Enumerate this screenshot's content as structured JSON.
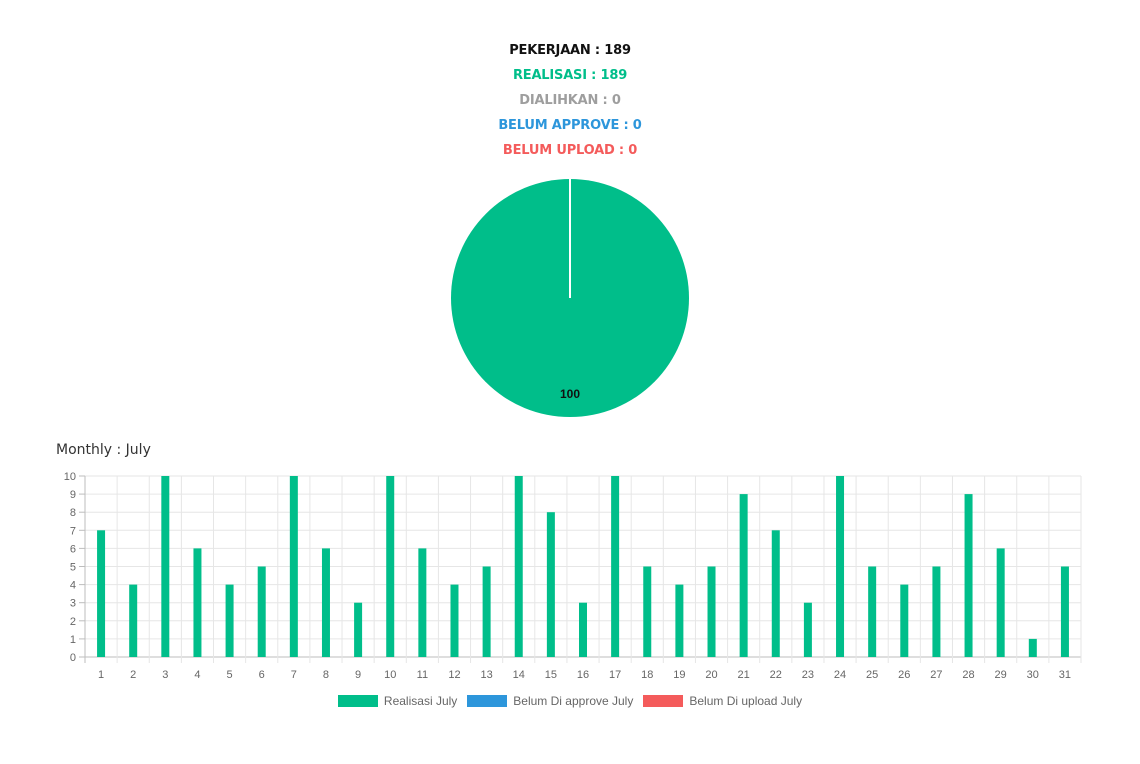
{
  "stats": {
    "pekerjaan": "PEKERJAAN : 189",
    "realisasi": "REALISASI : 189",
    "dialihkan": "DIALIHKAN : 0",
    "belum_approve": "BELUM APPROVE : 0",
    "belum_upload": "BELUM UPLOAD : 0"
  },
  "colors": {
    "black": "#111111",
    "green": "#00be8a",
    "gray": "#9e9e9e",
    "blue": "#2d96db",
    "red": "#f45b5b"
  },
  "monthly_title": "Monthly : July",
  "chart_data": [
    {
      "type": "pie",
      "slices": [
        {
          "label": "Realisasi",
          "value": 100,
          "color": "#00be8a"
        }
      ],
      "data_label": "100"
    },
    {
      "type": "bar",
      "categories": [
        "1",
        "2",
        "3",
        "4",
        "5",
        "6",
        "7",
        "8",
        "9",
        "10",
        "11",
        "12",
        "13",
        "14",
        "15",
        "16",
        "17",
        "18",
        "19",
        "20",
        "21",
        "22",
        "23",
        "24",
        "25",
        "26",
        "27",
        "28",
        "29",
        "30",
        "31"
      ],
      "series": [
        {
          "name": "Realisasi July",
          "color": "#00be8a",
          "values": [
            7,
            4,
            10,
            6,
            4,
            5,
            10,
            6,
            3,
            10,
            6,
            4,
            5,
            10,
            8,
            3,
            10,
            5,
            4,
            5,
            9,
            7,
            3,
            10,
            5,
            4,
            5,
            9,
            6,
            1,
            5
          ]
        },
        {
          "name": "Belum Di approve July",
          "color": "#2d96db",
          "values": [
            0,
            0,
            0,
            0,
            0,
            0,
            0,
            0,
            0,
            0,
            0,
            0,
            0,
            0,
            0,
            0,
            0,
            0,
            0,
            0,
            0,
            0,
            0,
            0,
            0,
            0,
            0,
            0,
            0,
            0,
            0
          ]
        },
        {
          "name": "Belum Di upload July",
          "color": "#f45b5b",
          "values": [
            0,
            0,
            0,
            0,
            0,
            0,
            0,
            0,
            0,
            0,
            0,
            0,
            0,
            0,
            0,
            0,
            0,
            0,
            0,
            0,
            0,
            0,
            0,
            0,
            0,
            0,
            0,
            0,
            0,
            0,
            0
          ]
        }
      ],
      "ylim": [
        0,
        10
      ],
      "yticks": [
        0,
        1,
        2,
        3,
        4,
        5,
        6,
        7,
        8,
        9,
        10
      ],
      "grid": true,
      "legend": "bottom"
    }
  ]
}
